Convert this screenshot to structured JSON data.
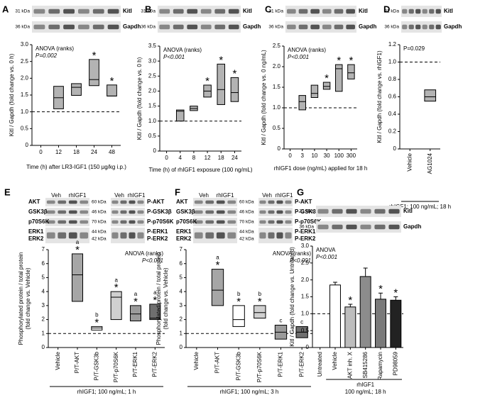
{
  "chart_data": [
    {
      "type": "box",
      "panel_label": "A",
      "blot": {
        "kda": [
          "31 kDa",
          "36 kDa"
        ],
        "proteins": [
          "Kitl",
          "Gapdh"
        ]
      },
      "annotations": [
        "ANOVA (ranks)",
        "P=0.002"
      ],
      "y_label": [
        "Kitl / Gapdh (fold change vs. 0 h)"
      ],
      "x_label": [
        "Time (h) after LR3-IGF1 (150 µg/kg i.p.)"
      ],
      "categories": [
        "0",
        "12",
        "18",
        "24",
        "48"
      ],
      "q1": [
        null,
        1.09,
        1.49,
        1.78,
        1.47
      ],
      "median": [
        null,
        1.42,
        1.73,
        1.96,
        1.47
      ],
      "q3": [
        null,
        1.76,
        1.84,
        2.56,
        1.8
      ],
      "fills": [
        null,
        "#b3b3b3",
        "#b3b3b3",
        "#b3b3b3",
        "#b3b3b3"
      ],
      "markers": [
        null,
        null,
        null,
        "*",
        "*"
      ],
      "reference_line": 1,
      "ylim": [
        0,
        3
      ],
      "yticks": [
        0,
        0.5,
        {
          "value": 1,
          "label": "1.0"
        },
        1.5,
        {
          "value": 2,
          "label": "2.0"
        },
        2.5,
        {
          "value": 3,
          "label": "3.0"
        }
      ]
    },
    {
      "type": "box",
      "panel_label": "B",
      "blot": {
        "kda": [
          "31 kDa",
          "36 kDa"
        ],
        "proteins": [
          "Kitl",
          "Gapdh"
        ]
      },
      "annotations": [
        "ANOVA (ranks)",
        "P<0.001"
      ],
      "y_label": [
        "Kitl / Gapdh (fold change vs. 0 h)"
      ],
      "x_label": [
        "Time (h) of rhIGF1 exposure (100 ng/mL)"
      ],
      "categories": [
        "0",
        "4",
        "8",
        "12",
        "18",
        "24"
      ],
      "q1": [
        null,
        1.0,
        1.35,
        1.8,
        1.55,
        1.65
      ],
      "median": [
        null,
        1.33,
        1.42,
        2.0,
        2.05,
        1.95
      ],
      "q3": [
        null,
        1.37,
        1.5,
        2.2,
        2.9,
        2.45
      ],
      "fills": [
        null,
        "#b3b3b3",
        "#b3b3b3",
        "#b3b3b3",
        "#b3b3b3",
        "#b3b3b3"
      ],
      "markers": [
        null,
        null,
        null,
        "*",
        "*",
        "*"
      ],
      "reference_line": 1,
      "ylim": [
        0,
        3.5
      ],
      "yticks": [
        0,
        0.5,
        {
          "value": 1,
          "label": "1.0"
        },
        1.5,
        {
          "value": 2,
          "label": "2.0"
        },
        2.5,
        {
          "value": 3,
          "label": "3.0"
        },
        3.5
      ]
    },
    {
      "type": "box",
      "panel_label": "C",
      "blot": {
        "kda": [
          "31 kDa",
          "36 kDa"
        ],
        "proteins": [
          "Kitl",
          "Gapdh"
        ]
      },
      "annotations": [
        "ANOVA (ranks)",
        "P<0.001"
      ],
      "y_label": [
        "Kitl / Gapdh (fold change vs. 0 ng/mL)"
      ],
      "x_label": [
        "rhIGF1 dose (ng/mL) applied for 18 h"
      ],
      "categories": [
        "0",
        "3",
        "10",
        "30",
        "100",
        "300"
      ],
      "q1": [
        null,
        0.95,
        1.25,
        1.45,
        1.4,
        1.7
      ],
      "median": [
        null,
        1.15,
        1.35,
        1.52,
        1.95,
        1.85
      ],
      "q3": [
        null,
        1.3,
        1.55,
        1.62,
        2.05,
        2.05
      ],
      "fills": [
        null,
        "#b3b3b3",
        "#b3b3b3",
        "#b3b3b3",
        "#b3b3b3",
        "#b3b3b3"
      ],
      "markers": [
        null,
        null,
        null,
        "*",
        "*",
        "*"
      ],
      "reference_line": 1,
      "ylim": [
        0,
        2.5
      ],
      "yticks": [
        0,
        0.5,
        {
          "value": 1,
          "label": "1.0"
        },
        1.5,
        {
          "value": 2,
          "label": "2.0"
        },
        2.5
      ]
    },
    {
      "type": "box",
      "panel_label": "D",
      "blot": {
        "kda": [
          "31 kDa",
          "36 kDa"
        ],
        "proteins": [
          "Kitl",
          "Gapdh"
        ]
      },
      "annotations": [
        "P=0.029"
      ],
      "y_label": [
        "Kitl / Gapdh (fold change vs. rhIGF1)"
      ],
      "x_label": [
        "rhIGF1; 100 ng/mL; 18 h"
      ],
      "categories": [
        "Vehicle",
        "AG1024"
      ],
      "q1": [
        null,
        0.55
      ],
      "median": [
        null,
        0.6
      ],
      "q3": [
        null,
        0.68
      ],
      "fills": [
        null,
        "#b3b3b3"
      ],
      "markers": [
        null,
        null
      ],
      "reference_line": 1,
      "ylim": [
        0,
        1.2
      ],
      "yticks": [
        0,
        0.2,
        0.4,
        0.6,
        0.8,
        {
          "value": 1,
          "label": "1.0"
        },
        1.2
      ]
    },
    {
      "type": "box",
      "panel_label": "E",
      "blot": {
        "groups": [
          "Veh",
          "rhIGF1",
          "Veh",
          "rhIGF1"
        ],
        "total": [
          "AKT",
          "GSK3β",
          "p70S6K",
          "ERK1",
          "ERK2"
        ],
        "kda": [
          "60 kDa",
          "46 kDa",
          "70 kDa",
          "44 kDa",
          "42 kDa"
        ],
        "phospho": [
          "P-AKT",
          "P-GSK3β",
          "P-p70S6K",
          "P-ERK1",
          "P-ERK2"
        ]
      },
      "annotations": [
        "ANOVA (ranks)",
        "P<0.001"
      ],
      "y_label": [
        "Phosphorylated protein / total protein",
        "(fold change vs. Vehicle)"
      ],
      "x_label": [
        "rhIGF1; 100 ng/mL; 1 h"
      ],
      "categories": [
        "Vehicle",
        "P/T-AKT",
        "P/T-GSK3b",
        "P/T-p70S6K",
        "P/T-ERK1",
        "P/T-ERK2"
      ],
      "q1": [
        null,
        3.3,
        1.25,
        2.0,
        1.9,
        2.0
      ],
      "median": [
        null,
        5.2,
        1.4,
        3.6,
        2.4,
        2.1
      ],
      "q3": [
        null,
        6.7,
        1.5,
        4.0,
        3.0,
        3.1
      ],
      "fills": [
        null,
        "#a6a6a6",
        "#ffffff",
        "#d0d0d0",
        "#9a9a9a",
        "#6f6f6f"
      ],
      "markers": [
        null,
        "*",
        "*",
        "*",
        "*",
        "*"
      ],
      "letters": [
        null,
        "a",
        "b",
        "a",
        "a",
        "a"
      ],
      "reference_line": 1,
      "ylim": [
        0,
        7
      ],
      "yticks": [
        0,
        1,
        2,
        3,
        4,
        5,
        6,
        7
      ]
    },
    {
      "type": "box",
      "panel_label": "F",
      "blot": {
        "groups": [
          "Veh",
          "rhIGF1",
          "Veh",
          "rhIGF1"
        ],
        "total": [
          "AKT",
          "GSK3β",
          "p70S6K",
          "ERK1",
          "ERK2"
        ],
        "kda": [
          "60 kDa",
          "46 kDa",
          "70 kDa",
          "44 kDa",
          "42 kDa"
        ],
        "phospho": [
          "P-AKT",
          "P-GSK3β",
          "P-p70S6K",
          "P-ERK1",
          "P-ERK2"
        ]
      },
      "annotations": [
        "ANOVA (ranks)",
        "P<0.001"
      ],
      "y_label": [
        "Phosphorylated protein / total protein",
        "(fold change vs. Vehicle)"
      ],
      "x_label": [
        "rhIGF1; 100 ng/mL; 3 h"
      ],
      "categories": [
        "Vehicle",
        "P/T-AKT",
        "P/T-GSK3b",
        "P/T-p70S6K",
        "P/T-ERK1",
        "P/T-ERK2"
      ],
      "q1": [
        null,
        3.0,
        1.5,
        2.1,
        0.6,
        0.7
      ],
      "median": [
        null,
        4.1,
        2.0,
        2.5,
        1.1,
        1.1
      ],
      "q3": [
        null,
        5.6,
        3.0,
        3.0,
        1.6,
        1.5
      ],
      "fills": [
        null,
        "#a6a6a6",
        "#ffffff",
        "#d0d0d0",
        "#9a9a9a",
        "#6f6f6f"
      ],
      "markers": [
        null,
        "*",
        "*",
        "*",
        null,
        null
      ],
      "letters": [
        null,
        "a",
        "b",
        "b",
        "c",
        "c"
      ],
      "reference_line": 1,
      "ylim": [
        0,
        7
      ],
      "yticks": [
        0,
        1,
        2,
        3,
        4,
        5,
        6,
        7
      ]
    },
    {
      "type": "bar",
      "panel_label": "G",
      "blot": {
        "kda": [
          "31 kDa",
          "36 kDa"
        ],
        "proteins": [
          "Kitl",
          "Gapdh"
        ]
      },
      "annotations": [
        "ANOVA",
        "P<0.001"
      ],
      "y_label": [
        "Kitl / Gapdh (fold change vs. Untreated)"
      ],
      "x_label": [
        "rhIGF1",
        "100 ng/mL; 18 h"
      ],
      "categories": [
        "Untreated",
        "Vehicle",
        "AKT inh. X",
        "SB415286",
        "Rapamycin",
        "PD98059"
      ],
      "values": [
        null,
        1.85,
        1.2,
        2.1,
        1.43,
        1.4
      ],
      "errors": [
        null,
        0.08,
        0.08,
        0.25,
        0.18,
        0.1
      ],
      "fills": [
        null,
        "#ffffff",
        "#bdbdbd",
        "#8c8c8c",
        "#7a7a7a",
        "#222222"
      ],
      "markers": [
        null,
        null,
        "*",
        null,
        "*",
        "*"
      ],
      "reference_line": 1,
      "ylim": [
        0,
        3
      ],
      "yticks": [
        0,
        0.5,
        {
          "value": 1,
          "label": "1.0"
        },
        1.5,
        {
          "value": 2,
          "label": "2.0"
        },
        2.5,
        {
          "value": 3,
          "label": "3.0"
        }
      ]
    }
  ]
}
